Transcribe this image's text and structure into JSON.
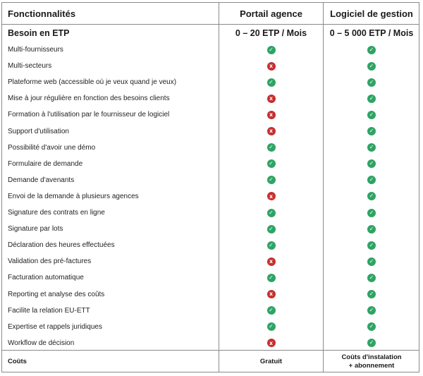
{
  "header": {
    "col1": "Fonctionnalités",
    "col2": "Portail agence",
    "col3": "Logiciel de gestion"
  },
  "subheader": {
    "label": "Besoin en ETP",
    "portail": "0 – 20 ETP / Mois",
    "logiciel": "0 – 5 000 ETP / Mois"
  },
  "rows": [
    {
      "label": "Multi-fournisseurs",
      "portail": "check",
      "logiciel": "check"
    },
    {
      "label": "Multi-secteurs",
      "portail": "x",
      "logiciel": "check"
    },
    {
      "label": "Plateforme web (accessible où je veux quand je veux)",
      "portail": "check",
      "logiciel": "check"
    },
    {
      "label": "Mise à jour régulière en fonction des besoins clients",
      "portail": "x",
      "logiciel": "check"
    },
    {
      "label": "Formation à l'utilisation par le fournisseur de logiciel",
      "portail": "x",
      "logiciel": "check"
    },
    {
      "label": "Support d'utilisation",
      "portail": "x",
      "logiciel": "check"
    },
    {
      "label": "Possibilité d'avoir une démo",
      "portail": "check",
      "logiciel": "check"
    },
    {
      "label": "Formulaire de demande",
      "portail": "check",
      "logiciel": "check"
    },
    {
      "label": "Demande d'avenants",
      "portail": "check",
      "logiciel": "check"
    },
    {
      "label": "Envoi de la demande à plusieurs agences",
      "portail": "x",
      "logiciel": "check"
    },
    {
      "label": "Signature des contrats en ligne",
      "portail": "check",
      "logiciel": "check"
    },
    {
      "label": "Signature par lots",
      "portail": "check",
      "logiciel": "check"
    },
    {
      "label": "Déclaration des heures effectuées",
      "portail": "check",
      "logiciel": "check"
    },
    {
      "label": "Validation des pré-factures",
      "portail": "x",
      "logiciel": "check"
    },
    {
      "label": "Facturation automatique",
      "portail": "check",
      "logiciel": "check"
    },
    {
      "label": "Reporting et analyse des coûts",
      "portail": "x",
      "logiciel": "check"
    },
    {
      "label": "Facilite la relation EU-ETT",
      "portail": "check",
      "logiciel": "check"
    },
    {
      "label": "Expertise et rappels juridiques",
      "portail": "check",
      "logiciel": "check"
    },
    {
      "label": "Workflow de décision",
      "portail": "x",
      "logiciel": "check"
    }
  ],
  "footer": {
    "label": "Coûts",
    "portail": "Gratuit",
    "logiciel_line1": "Coûts d'instalation",
    "logiciel_line2": "+ abonnement"
  },
  "icons": {
    "check_glyph": "✓",
    "x_glyph": "x",
    "check_color": "#2fa463",
    "x_color": "#c53030"
  }
}
